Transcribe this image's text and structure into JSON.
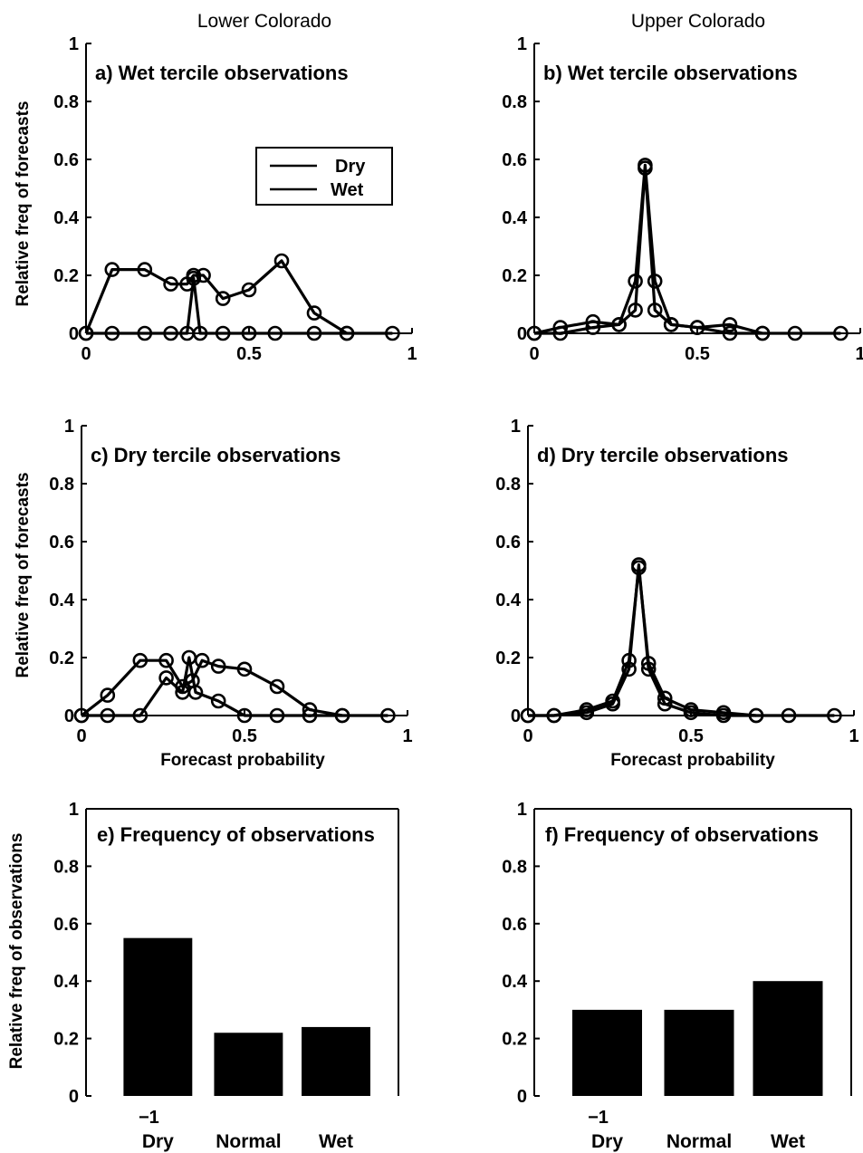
{
  "column_titles": {
    "left": "Lower Colorado",
    "right": "Upper Colorado"
  },
  "y_axis_labels": {
    "forecasts": "Relative freq of forecasts",
    "observations": "Relative freq of observations"
  },
  "x_axis_label": "Forecast probability",
  "legend": {
    "dry": "Dry",
    "wet": "Wet"
  },
  "chart_data": [
    {
      "id": "a",
      "type": "line",
      "title": "a) Wet tercile observations",
      "xlim": [
        0,
        1
      ],
      "ylim": [
        0,
        1
      ],
      "xticks": [
        "0",
        "0.5",
        "1"
      ],
      "yticks": [
        "0",
        "0.2",
        "0.4",
        "0.6",
        "0.8",
        "1"
      ],
      "series": [
        {
          "name": "Dry",
          "x": [
            0,
            0.08,
            0.18,
            0.26,
            0.31,
            0.33,
            0.35,
            0.42,
            0.5,
            0.58,
            0.7,
            0.8,
            0.94
          ],
          "y": [
            0,
            0,
            0,
            0,
            0,
            0.19,
            0,
            0,
            0,
            0,
            0,
            0,
            0
          ]
        },
        {
          "name": "Wet",
          "x": [
            0,
            0.08,
            0.18,
            0.26,
            0.31,
            0.33,
            0.36,
            0.42,
            0.5,
            0.6,
            0.7,
            0.8
          ],
          "y": [
            0,
            0.22,
            0.22,
            0.17,
            0.17,
            0.2,
            0.2,
            0.12,
            0.15,
            0.25,
            0.07,
            0
          ]
        }
      ]
    },
    {
      "id": "b",
      "type": "line",
      "title": "b) Wet tercile observations",
      "xlim": [
        0,
        1
      ],
      "ylim": [
        0,
        1
      ],
      "xticks": [
        "0",
        "0.5",
        "1"
      ],
      "yticks": [
        "0",
        "0.2",
        "0.4",
        "0.6",
        "0.8",
        "1"
      ],
      "series": [
        {
          "name": "Dry",
          "x": [
            0,
            0.08,
            0.18,
            0.26,
            0.31,
            0.34,
            0.37,
            0.42,
            0.5,
            0.6,
            0.7,
            0.8,
            0.94
          ],
          "y": [
            0,
            0,
            0.02,
            0.03,
            0.18,
            0.58,
            0.18,
            0.03,
            0.02,
            0,
            0,
            0,
            0
          ]
        },
        {
          "name": "Wet",
          "x": [
            0,
            0.08,
            0.18,
            0.26,
            0.31,
            0.34,
            0.37,
            0.42,
            0.5,
            0.6,
            0.7
          ],
          "y": [
            0,
            0.02,
            0.04,
            0.03,
            0.08,
            0.57,
            0.08,
            0.03,
            0.02,
            0.03,
            0
          ]
        }
      ]
    },
    {
      "id": "c",
      "type": "line",
      "title": "c) Dry tercile observations",
      "xlim": [
        0,
        1
      ],
      "ylim": [
        0,
        1
      ],
      "xticks": [
        "0",
        "0.5",
        "1"
      ],
      "yticks": [
        "0",
        "0.2",
        "0.4",
        "0.6",
        "0.8",
        "1"
      ],
      "series": [
        {
          "name": "Dry",
          "x": [
            0,
            0.08,
            0.18,
            0.26,
            0.31,
            0.33,
            0.35,
            0.42,
            0.5,
            0.6,
            0.7,
            0.8,
            0.94
          ],
          "y": [
            0,
            0,
            0,
            0.13,
            0.08,
            0.2,
            0.08,
            0.05,
            0,
            0,
            0,
            0,
            0
          ]
        },
        {
          "name": "Wet",
          "x": [
            0,
            0.08,
            0.18,
            0.26,
            0.31,
            0.34,
            0.37,
            0.42,
            0.5,
            0.6,
            0.7,
            0.8
          ],
          "y": [
            0,
            0.07,
            0.19,
            0.19,
            0.1,
            0.12,
            0.19,
            0.17,
            0.16,
            0.1,
            0.02,
            0
          ]
        }
      ]
    },
    {
      "id": "d",
      "type": "line",
      "title": "d) Dry tercile observations",
      "xlim": [
        0,
        1
      ],
      "ylim": [
        0,
        1
      ],
      "xticks": [
        "0",
        "0.5",
        "1"
      ],
      "yticks": [
        "0",
        "0.2",
        "0.4",
        "0.6",
        "0.8",
        "1"
      ],
      "series": [
        {
          "name": "Dry",
          "x": [
            0,
            0.08,
            0.18,
            0.26,
            0.31,
            0.34,
            0.37,
            0.42,
            0.5,
            0.6,
            0.7,
            0.8,
            0.94
          ],
          "y": [
            0,
            0,
            0.01,
            0.04,
            0.16,
            0.52,
            0.16,
            0.04,
            0.01,
            0,
            0,
            0,
            0
          ]
        },
        {
          "name": "Wet",
          "x": [
            0,
            0.08,
            0.18,
            0.26,
            0.31,
            0.34,
            0.37,
            0.42,
            0.5,
            0.6,
            0.7
          ],
          "y": [
            0,
            0,
            0.02,
            0.05,
            0.19,
            0.51,
            0.18,
            0.06,
            0.02,
            0.01,
            0
          ]
        }
      ]
    },
    {
      "id": "e",
      "type": "bar",
      "title": "e) Frequency of observations",
      "ylim": [
        0,
        1
      ],
      "yticks": [
        "0",
        "0.2",
        "0.4",
        "0.6",
        "0.8",
        "1"
      ],
      "categories": [
        "Dry",
        "Normal",
        "Wet"
      ],
      "values": [
        0.55,
        0.22,
        0.24
      ],
      "xtick_label": "−1"
    },
    {
      "id": "f",
      "type": "bar",
      "title": "f) Frequency of observations",
      "ylim": [
        0,
        1
      ],
      "yticks": [
        "0",
        "0.2",
        "0.4",
        "0.6",
        "0.8",
        "1"
      ],
      "categories": [
        "Dry",
        "Normal",
        "Wet"
      ],
      "values": [
        0.3,
        0.3,
        0.4
      ],
      "xtick_label": "−1"
    }
  ]
}
